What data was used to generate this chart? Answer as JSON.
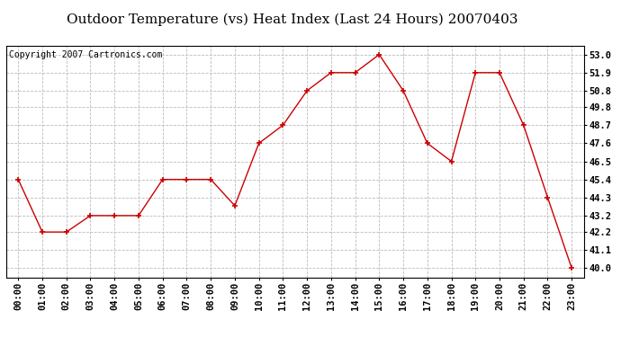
{
  "title": "Outdoor Temperature (vs) Heat Index (Last 24 Hours) 20070403",
  "copyright": "Copyright 2007 Cartronics.com",
  "hours": [
    "00:00",
    "01:00",
    "02:00",
    "03:00",
    "04:00",
    "05:00",
    "06:00",
    "07:00",
    "08:00",
    "09:00",
    "10:00",
    "11:00",
    "12:00",
    "13:00",
    "14:00",
    "15:00",
    "16:00",
    "17:00",
    "18:00",
    "19:00",
    "20:00",
    "21:00",
    "22:00",
    "23:00"
  ],
  "values": [
    45.4,
    42.2,
    42.2,
    43.2,
    43.2,
    43.2,
    45.4,
    45.4,
    45.4,
    43.8,
    47.6,
    48.7,
    50.8,
    51.9,
    51.9,
    53.0,
    50.8,
    47.6,
    46.5,
    51.9,
    51.9,
    48.7,
    44.3,
    40.0
  ],
  "line_color": "#cc0000",
  "marker_color": "#cc0000",
  "bg_color": "#ffffff",
  "grid_color": "#bbbbbb",
  "ylim_min": 39.4,
  "ylim_max": 53.55,
  "yticks": [
    40.0,
    41.1,
    42.2,
    43.2,
    44.3,
    45.4,
    46.5,
    47.6,
    48.7,
    49.8,
    50.8,
    51.9,
    53.0
  ],
  "title_fontsize": 11,
  "copyright_fontsize": 7,
  "tick_fontsize": 7.5
}
